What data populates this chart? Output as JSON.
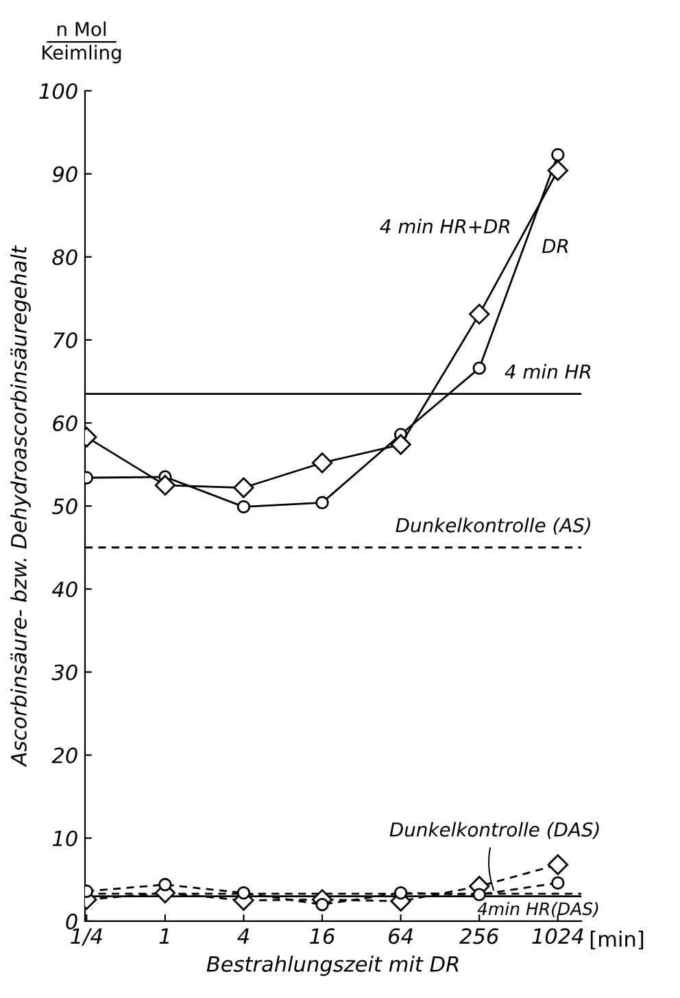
{
  "chart_data": {
    "type": "line",
    "xlabel": "Bestrahlungszeit mit DR",
    "ylabel": "Ascorbinsäure- bzw. Dehydroascorbinsäuregehalt",
    "categories": [
      "1/4",
      "1",
      "4",
      "16",
      "64",
      "256",
      "1024"
    ],
    "series": [
      {
        "name": "4 min HR+DR",
        "color": "#000000",
        "marker": "diamond",
        "line_style": "solid",
        "values": [
          58.3,
          52.5,
          52.2,
          55.2,
          57.4,
          73.1,
          90.4
        ]
      },
      {
        "name": "DR",
        "color": "#000000",
        "marker": "circle",
        "line_style": "solid",
        "values": [
          53.4,
          53.5,
          49.9,
          50.4,
          58.6,
          66.6,
          92.3
        ]
      },
      {
        "color": "#000000",
        "marker": "circle",
        "line_style": "dashed",
        "values": [
          3.6,
          4.4,
          3.4,
          2.0,
          3.4,
          3.2,
          4.6
        ]
      },
      {
        "color": "#000000",
        "marker": "diamond",
        "line_style": "dashed",
        "values": [
          2.6,
          3.4,
          2.5,
          2.6,
          2.4,
          4.2,
          6.8
        ]
      }
    ],
    "ref_lines": [
      {
        "axis": "y",
        "value": 63.5,
        "label": "4 min HR",
        "color": "#000000",
        "line_style": "solid"
      },
      {
        "axis": "y",
        "value": 45,
        "label": "Dunkelkontrolle (AS)",
        "color": "#000000",
        "line_style": "dashed"
      },
      {
        "axis": "y",
        "value": 3.3,
        "label": "Dunkelkontrolle (DAS)",
        "color": "#000000",
        "line_style": "dashed"
      },
      {
        "axis": "y",
        "value": 3.0,
        "label": "4min HR(DAS)",
        "color": "#000000",
        "line_style": "solid"
      }
    ],
    "annotations": [
      "n Mol",
      "Keimling",
      "[min]"
    ],
    "ylim": [
      0,
      100
    ],
    "yticks": [
      0,
      10,
      20,
      30,
      40,
      50,
      60,
      70,
      80,
      90,
      100
    ],
    "grid": false,
    "legend": false
  }
}
